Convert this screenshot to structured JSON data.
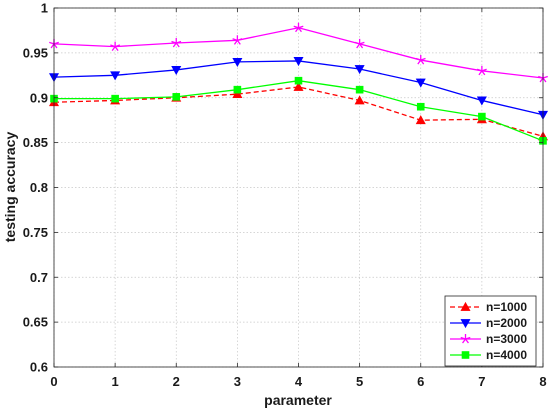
{
  "chart_data": {
    "type": "line",
    "title": "",
    "xlabel": "parameter",
    "ylabel": "testing accuracy",
    "x": [
      0,
      1,
      2,
      3,
      4,
      5,
      6,
      7,
      8
    ],
    "xlim": [
      0,
      8
    ],
    "ylim": [
      0.6,
      1
    ],
    "xticks": [
      "0",
      "1",
      "2",
      "3",
      "4",
      "5",
      "6",
      "7",
      "8"
    ],
    "yticks": [
      "0.6",
      "0.65",
      "0.7",
      "0.75",
      "0.8",
      "0.85",
      "0.9",
      "0.95",
      "1"
    ],
    "grid": true,
    "legend_position": "bottom-right",
    "series": [
      {
        "name": "n=1000",
        "color": "#ff0000",
        "line_style": "dashed",
        "marker": "triangle-up",
        "values": [
          0.895,
          0.897,
          0.9,
          0.904,
          0.912,
          0.897,
          0.875,
          0.876,
          0.857
        ]
      },
      {
        "name": "n=2000",
        "color": "#0000ff",
        "line_style": "solid",
        "marker": "triangle-down",
        "values": [
          0.923,
          0.925,
          0.931,
          0.94,
          0.941,
          0.932,
          0.917,
          0.897,
          0.881
        ]
      },
      {
        "name": "n=3000",
        "color": "#ff00ff",
        "line_style": "solid",
        "marker": "star",
        "values": [
          0.96,
          0.957,
          0.961,
          0.964,
          0.978,
          0.96,
          0.942,
          0.93,
          0.922
        ]
      },
      {
        "name": "n=4000",
        "color": "#00ff00",
        "line_style": "solid",
        "marker": "square",
        "values": [
          0.899,
          0.899,
          0.901,
          0.909,
          0.919,
          0.909,
          0.89,
          0.879,
          0.852
        ]
      }
    ]
  }
}
